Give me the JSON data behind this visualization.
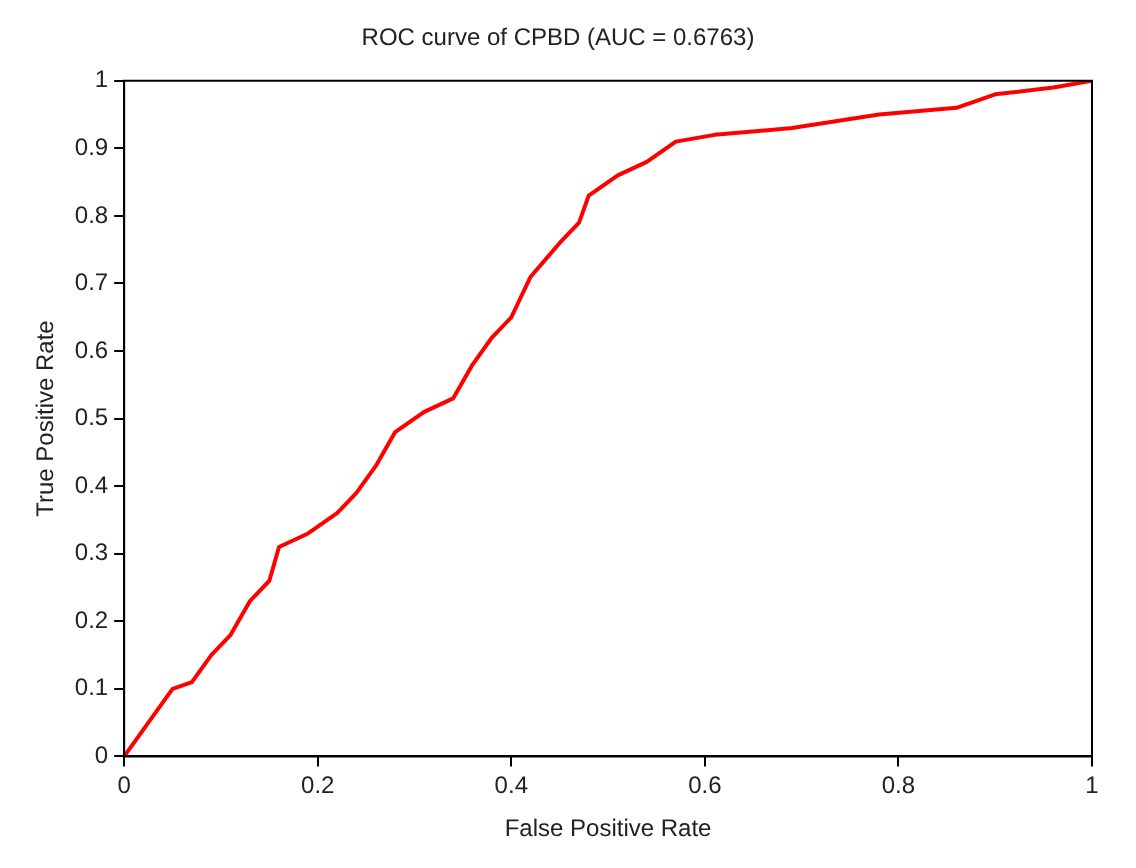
{
  "chart_data": {
    "type": "line",
    "title": "ROC curve of CPBD (AUC = 0.6763)",
    "xlabel": "False Positive Rate",
    "ylabel": "True Positive Rate",
    "xlim": [
      0,
      1
    ],
    "ylim": [
      0,
      1
    ],
    "xticks": [
      0,
      0.2,
      0.4,
      0.6,
      0.8,
      1
    ],
    "yticks": [
      0,
      0.1,
      0.2,
      0.3,
      0.4,
      0.5,
      0.6,
      0.7,
      0.8,
      0.9,
      1
    ],
    "grid": false,
    "legend": false,
    "marker": "none",
    "line_style": "solid",
    "series": [
      {
        "color": "#ff0000",
        "x": [
          0,
          0.02,
          0.05,
          0.07,
          0.09,
          0.11,
          0.13,
          0.15,
          0.16,
          0.19,
          0.22,
          0.24,
          0.26,
          0.28,
          0.31,
          0.34,
          0.36,
          0.38,
          0.4,
          0.42,
          0.45,
          0.47,
          0.48,
          0.51,
          0.54,
          0.57,
          0.61,
          0.69,
          0.78,
          0.86,
          0.9,
          0.96,
          1
        ],
        "values": [
          0,
          0.04,
          0.1,
          0.11,
          0.15,
          0.18,
          0.23,
          0.26,
          0.31,
          0.33,
          0.36,
          0.39,
          0.43,
          0.48,
          0.51,
          0.53,
          0.58,
          0.62,
          0.65,
          0.71,
          0.76,
          0.79,
          0.83,
          0.86,
          0.88,
          0.91,
          0.92,
          0.93,
          0.95,
          0.96,
          0.98,
          0.99,
          1
        ]
      }
    ]
  }
}
